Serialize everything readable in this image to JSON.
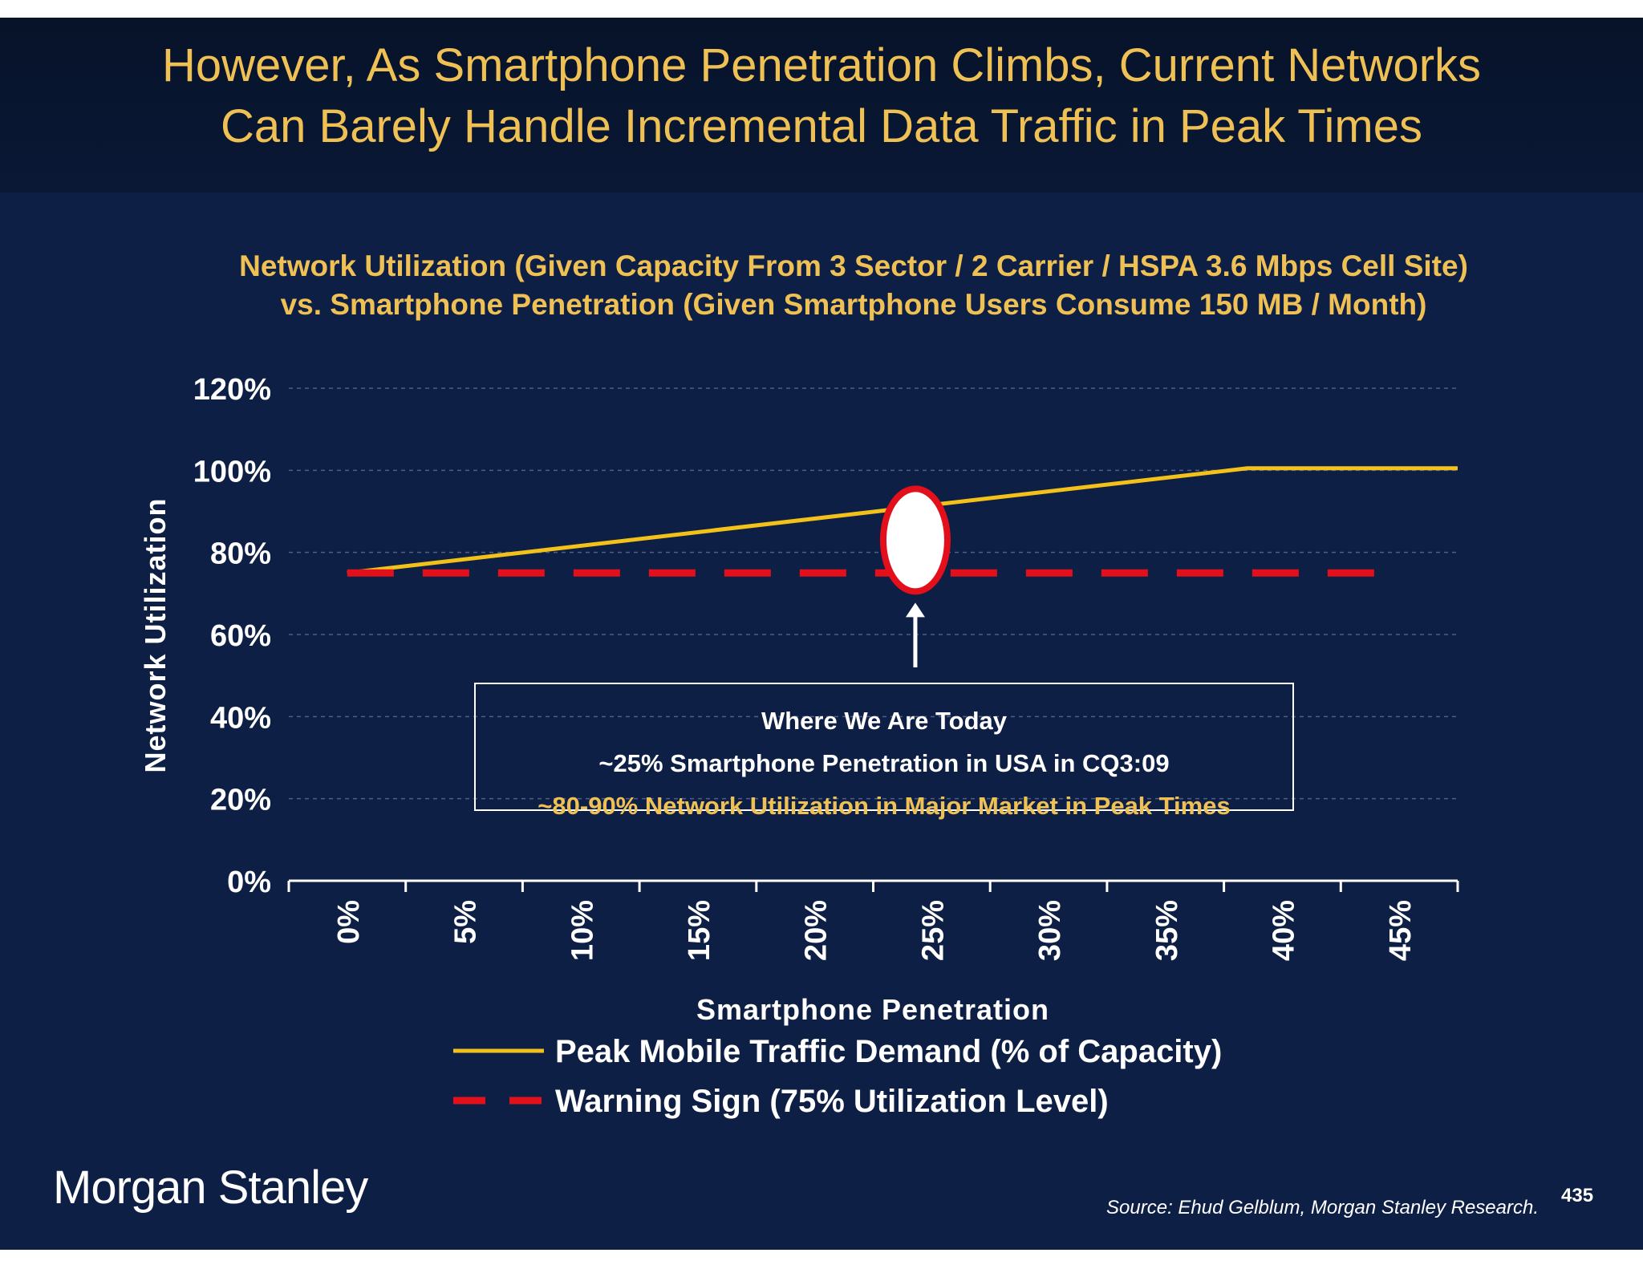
{
  "slide": {
    "title_line1": "However, As Smartphone Penetration Climbs, Current Networks",
    "title_line2": "Can Barely Handle Incremental Data Traffic in Peak Times",
    "logo": "Morgan Stanley",
    "source": "Source: Ehud Gelblum, Morgan Stanley Research.",
    "page_number": "435",
    "colors": {
      "background": "#0e1f45",
      "header": "#071329",
      "title": "#efc054",
      "demand_line": "#f2c21a",
      "warning_line": "#e3101b"
    }
  },
  "chart_data": {
    "type": "line",
    "title_line1": "Network Utilization (Given Capacity From 3 Sector / 2 Carrier / HSPA 3.6 Mbps Cell Site)",
    "title_line2": "vs. Smartphone Penetration (Given Smartphone Users Consume 150 MB / Month)",
    "xlabel": "Smartphone Penetration",
    "ylabel": "Network Utilization",
    "x_tick_labels": [
      "0%",
      "5%",
      "10%",
      "15%",
      "20%",
      "25%",
      "30%",
      "35%",
      "40%",
      "45%"
    ],
    "y_tick_labels": [
      "0%",
      "20%",
      "40%",
      "60%",
      "80%",
      "100%",
      "120%"
    ],
    "xlim": [
      -2.5,
      47.5
    ],
    "ylim": [
      0,
      120
    ],
    "grid": true,
    "series": [
      {
        "name": "Peak Mobile Traffic Demand (% of Capacity)",
        "style": "solid",
        "x": [
          0,
          38.5,
          47.5
        ],
        "y": [
          75,
          100.5,
          100.5
        ]
      },
      {
        "name": "Warning Sign (75% Utilization Level)",
        "style": "dashed",
        "x": [
          0,
          45
        ],
        "y": [
          75,
          75
        ]
      }
    ],
    "annotation": {
      "marker_x": 24.3,
      "marker_y": 83,
      "line1": "Where We Are Today",
      "line2": "~25% Smartphone Penetration in USA in CQ3:09",
      "line3": "~80-90% Network Utilization in Major Market in Peak Times"
    }
  }
}
